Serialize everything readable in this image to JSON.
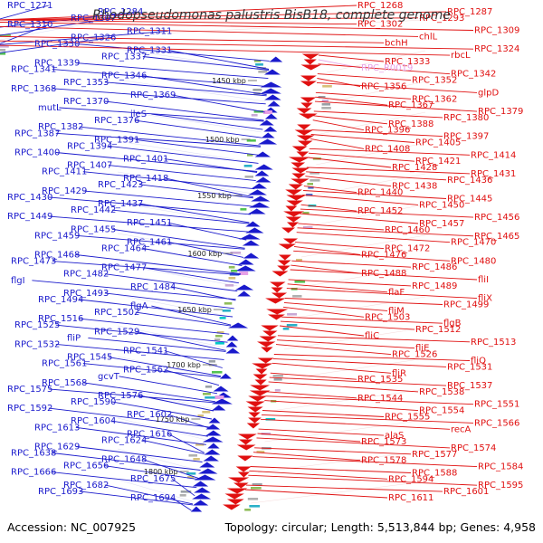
{
  "title": "Rhodopseudomonas palustris BisB18, complete genome",
  "footer": {
    "accession": "Accession: NC_007925",
    "summary": "Topology: circular; Length: 5,513,844 bp; Genes: 4,958"
  },
  "colors": {
    "forward_strand": "#1a1acc",
    "reverse_strand": "#e01010",
    "rna_gene": "#e6a0e6",
    "backbone": "#888888",
    "tick_marks": "#2e8b2e"
  },
  "kbp_markers": [
    "1450 kbp",
    "1500 kbp",
    "1550 kbp",
    "1600 kbp",
    "1650 kbp",
    "1700 kbp",
    "1750 kbp",
    "1800 kbp"
  ],
  "genes_left": [
    "RPC_1271",
    "RPC_1284",
    "RPC_1307",
    "RPC_1310",
    "RPC_1311",
    "RPC_1326",
    "RPC_1330",
    "RPC_1331",
    "RPC_1337",
    "RPC_1339",
    "RPC_1341",
    "RPC_1346",
    "RPC_1353",
    "RPC_1368",
    "RPC_1369",
    "RPC_1370",
    "mutL",
    "ileS",
    "RPC_1376",
    "RPC_1382",
    "RPC_1387",
    "RPC_1391",
    "RPC_1394",
    "RPC_1400",
    "RPC_1401",
    "RPC_1407",
    "RPC_1411",
    "RPC_1418",
    "RPC_1423",
    "RPC_1429",
    "RPC_1430",
    "RPC_1437",
    "RPC_1442",
    "RPC_1449",
    "RPC_1451",
    "RPC_1455",
    "RPC_1459",
    "RPC_1461",
    "RPC_1464",
    "RPC_1468",
    "RPC_1473",
    "RPC_1477",
    "RPC_1482",
    "flgI",
    "RPC_1484",
    "RPC_1493",
    "RPC_1494",
    "flgA",
    "RPC_1502",
    "RPC_1516",
    "RPC_1525",
    "RPC_1529",
    "fliP",
    "RPC_1532",
    "RPC_1541",
    "RPC_1545",
    "RPC_1561",
    "RPC_1562",
    "gcvT",
    "RPC_1568",
    "RPC_1575",
    "RPC_1576",
    "RPC_1590",
    "RPC_1592",
    "RPC_1602",
    "RPC_1604",
    "RPC_1613",
    "RPC_1616",
    "RPC_1624",
    "RPC_1629",
    "RPC_1638",
    "RPC_1648",
    "RPC_1656",
    "RPC_1666",
    "RPC_1675",
    "RPC_1682",
    "RPC_1693",
    "RPC_1694"
  ],
  "genes_right": [
    "RPC_1268",
    "RPC_1287",
    "RPC_1293",
    "RPC_1302",
    "RPC_1309",
    "chlL",
    "bchH",
    "RPC_1324",
    "rbcL",
    "RPC_1333",
    "RPC_R0019",
    "RPC_1342",
    "RPC_1352",
    "RPC_1356",
    "glpD",
    "RPC_1362",
    "RPC_1367",
    "RPC_1379",
    "RPC_1380",
    "RPC_1388",
    "RPC_1396",
    "RPC_1397",
    "RPC_1405",
    "RPC_1408",
    "RPC_1414",
    "RPC_1421",
    "RPC_1428",
    "RPC_1431",
    "RPC_1436",
    "RPC_1438",
    "RPC_1440",
    "RPC_1445",
    "RPC_1450",
    "RPC_1452",
    "RPC_1456",
    "RPC_1457",
    "RPC_1460",
    "RPC_1465",
    "RPC_1470",
    "RPC_1472",
    "RPC_1476",
    "RPC_1480",
    "RPC_1486",
    "RPC_1488",
    "fliI",
    "RPC_1489",
    "flaF",
    "fliX",
    "RPC_1499",
    "fliM",
    "RPC_1503",
    "flgB",
    "RPC_1512",
    "fliC",
    "RPC_1513",
    "fliE",
    "RPC_1526",
    "fliQ",
    "RPC_1531",
    "fliR",
    "RPC_1535",
    "RPC_1537",
    "RPC_1538",
    "RPC_1544",
    "RPC_1551",
    "RPC_1554",
    "RPC_1555",
    "RPC_1566",
    "recA",
    "alaS",
    "RPC_1573",
    "RPC_1574",
    "RPC_1577",
    "RPC_1578",
    "RPC_1584",
    "RPC_1588",
    "RPC_1594",
    "RPC_1595",
    "RPC_1601",
    "RPC_1611"
  ]
}
